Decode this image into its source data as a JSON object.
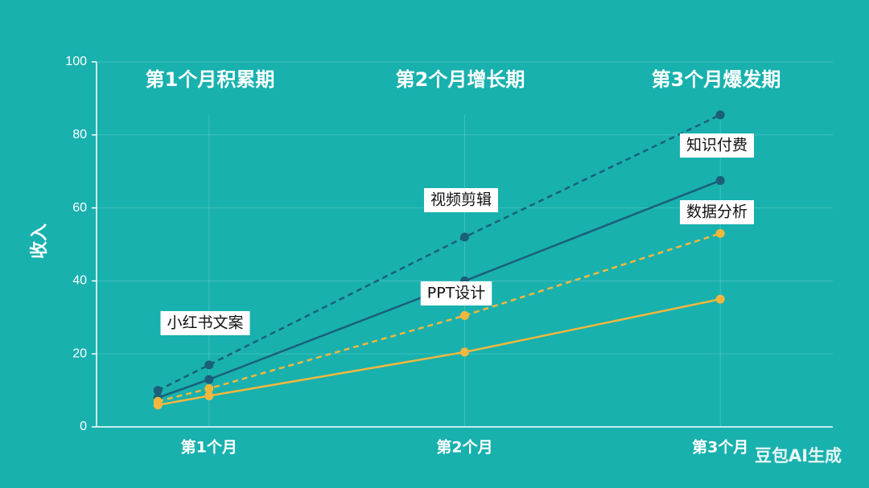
{
  "chart_data": {
    "type": "line",
    "ylabel": "收入",
    "x": [
      0.8,
      1,
      2,
      3
    ],
    "xlim": [
      0.56,
      3.44
    ],
    "xticks": [
      {
        "value": 1,
        "label": "第1个月"
      },
      {
        "value": 2,
        "label": "第2个月"
      },
      {
        "value": 3,
        "label": "第3个月"
      }
    ],
    "ylim": [
      0,
      100
    ],
    "yticks": [
      0,
      20,
      40,
      60,
      80,
      100
    ],
    "grid": true,
    "regions": [
      "第1个月积累期",
      "第2个月增长期",
      "第3个月爆发期"
    ],
    "annotations": [
      "小红书文案",
      "视频剪辑",
      "PPT设计",
      "知识付费",
      "数据分析"
    ],
    "series": [
      {
        "color": "#1b5f78",
        "dashed": true,
        "values": [
          10,
          17,
          52,
          85.5
        ]
      },
      {
        "color": "#1b5f78",
        "dashed": false,
        "values": [
          8,
          13,
          40,
          67.5
        ]
      },
      {
        "color": "#f3b73e",
        "dashed": true,
        "values": [
          7,
          10.5,
          30.5,
          53
        ]
      },
      {
        "color": "#f3b73e",
        "dashed": false,
        "values": [
          6,
          8.5,
          20.5,
          35
        ]
      }
    ]
  },
  "watermark": "豆包AI生成"
}
